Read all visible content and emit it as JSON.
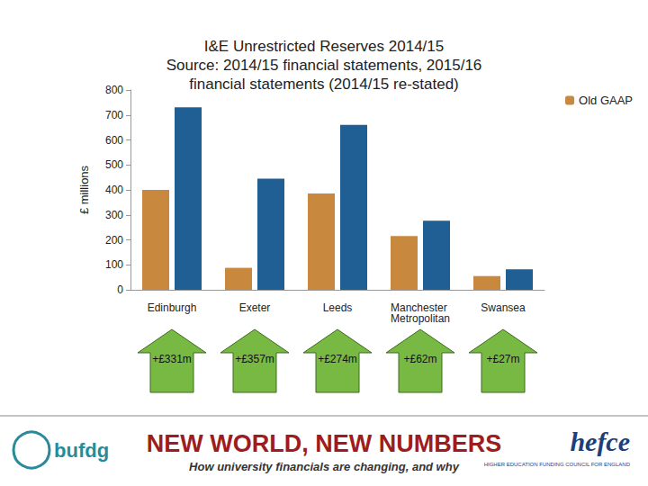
{
  "chart_data": {
    "type": "bar",
    "title": "I&E Unrestricted Reserves 2014/15\nSource: 2014/15 financial statements, 2015/16\nfinancial statements (2014/15 re-stated)",
    "y_label": "£ millions",
    "categories": [
      "Edinburgh",
      "Exeter",
      "Leeds",
      "Manchester Metropolitan",
      "Swansea"
    ],
    "series": [
      {
        "name": "Old GAAP",
        "color": "#c8893f",
        "values": [
          400,
          88,
          386,
          215,
          55
        ]
      },
      {
        "color": "#1f5f94",
        "values": [
          731,
          445,
          660,
          277,
          82
        ]
      }
    ],
    "ylim": [
      0,
      800
    ],
    "yticks": [
      0,
      100,
      200,
      300,
      400,
      500,
      600,
      700,
      800
    ],
    "grid": false,
    "legend": "top-right",
    "annotations": [
      "+£331m",
      "+£357m",
      "+£274m",
      "+£62m",
      "+£27m"
    ]
  },
  "footer": {
    "title": "NEW WORLD, NEW NUMBERS",
    "subtitle": "How university financials are changing, and why",
    "logos": [
      "bufdg",
      "hefce"
    ],
    "logo_caption": "HIGHER EDUCATION FUNDING COUNCIL FOR ENGLAND"
  }
}
